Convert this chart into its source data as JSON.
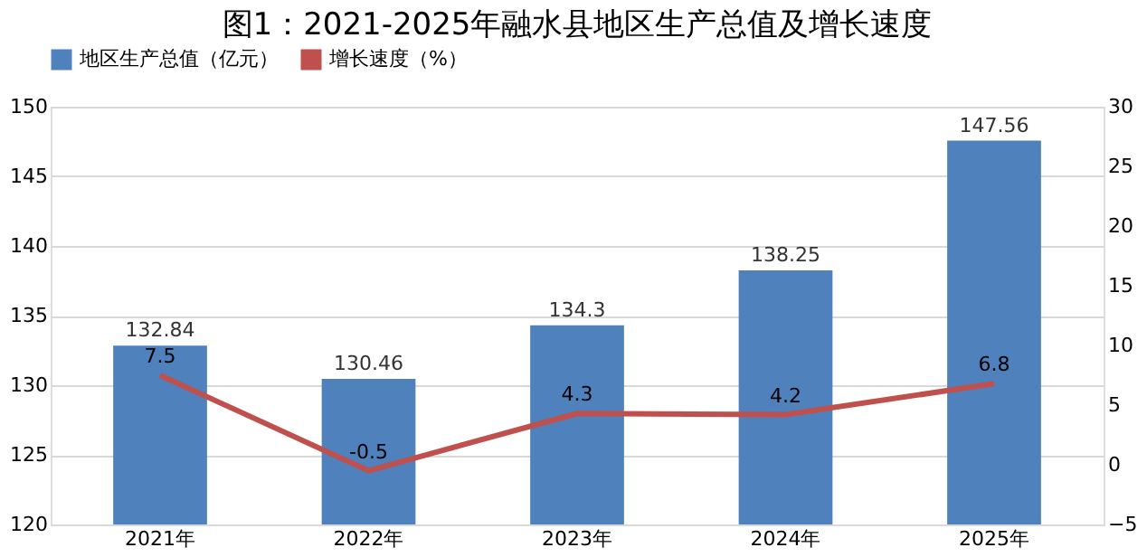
{
  "chart_data": {
    "type": "bar",
    "title": "图1：2021-2025年融水县地区生产总值及增长速度",
    "categories": [
      "2021年",
      "2022年",
      "2023年",
      "2024年",
      "2025年"
    ],
    "series": [
      {
        "name": "地区生产总值（亿元）",
        "color": "#4f81bd",
        "values": [
          132.84,
          130.46,
          134.3,
          138.25,
          147.56
        ]
      },
      {
        "name": "增长速度（%）",
        "type": "line",
        "axis": "y2",
        "color": "#c0504d",
        "values": [
          7.5,
          -0.5,
          4.3,
          4.2,
          6.8
        ]
      }
    ],
    "ylim": [
      120,
      150
    ],
    "yticks": [
      120,
      125,
      130,
      135,
      140,
      145,
      150
    ],
    "y2lim": [
      -5,
      30
    ],
    "y2ticks": [
      -5,
      0,
      5,
      10,
      15,
      20,
      25,
      30
    ],
    "grid": "y",
    "legend": "top",
    "data_labels": true,
    "marker": "none",
    "line_style": "solid"
  }
}
